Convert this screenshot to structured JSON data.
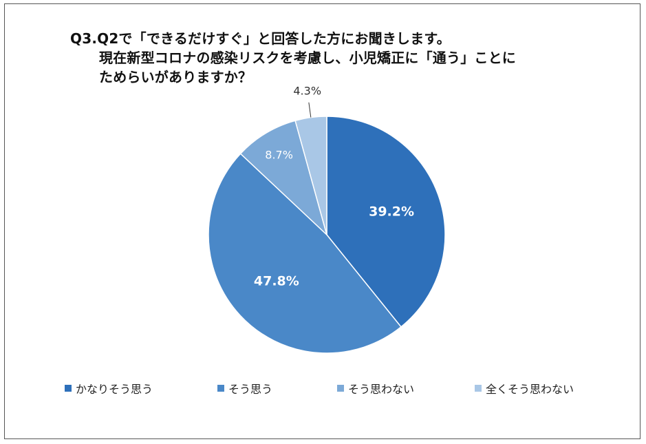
{
  "title": {
    "line1": "Q3.Q2で「できるだけすぐ」と回答した方にお聞きします。",
    "line2": "現在新型コロナの感染リスクを考慮し、小児矯正に「通う」ことに",
    "line3": "ためらいがありますか？"
  },
  "chart_data": {
    "type": "pie",
    "categories": [
      "かなりそう思う",
      "そう思う",
      "そう思わない",
      "全くそう思わない"
    ],
    "values": [
      39.2,
      47.8,
      8.7,
      4.3
    ],
    "labels": [
      "39.2%",
      "47.8%",
      "8.7%",
      "4.3%"
    ],
    "colors": [
      "#2E70BA",
      "#4A88C8",
      "#7CA9D7",
      "#A9C7E6"
    ],
    "legend_position": "bottom",
    "start": "12 o'clock, clockwise"
  }
}
